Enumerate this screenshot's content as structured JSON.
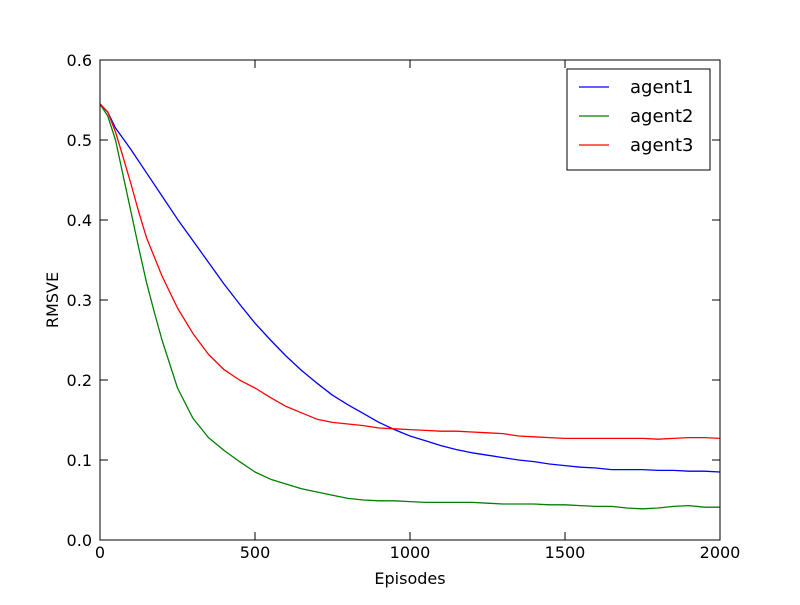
{
  "chart_data": {
    "type": "line",
    "title": "",
    "xlabel": "Episodes",
    "ylabel": "RMSVE",
    "xlim": [
      0,
      2000
    ],
    "ylim": [
      0.0,
      0.6
    ],
    "xticks": [
      0,
      500,
      1000,
      1500,
      2000
    ],
    "xtick_labels": [
      "0",
      "500",
      "1000",
      "1500",
      "2000"
    ],
    "yticks": [
      0.0,
      0.1,
      0.2,
      0.3,
      0.4,
      0.5,
      0.6
    ],
    "ytick_labels": [
      "0.0",
      "0.1",
      "0.2",
      "0.3",
      "0.4",
      "0.5",
      "0.6"
    ],
    "grid": false,
    "legend_position": "top-right",
    "series": [
      {
        "name": "agent1",
        "color": "#0000ff",
        "x": [
          0,
          25,
          50,
          100,
          150,
          200,
          250,
          300,
          350,
          400,
          450,
          500,
          550,
          600,
          650,
          700,
          750,
          800,
          850,
          900,
          950,
          1000,
          1050,
          1100,
          1150,
          1200,
          1250,
          1300,
          1350,
          1400,
          1450,
          1500,
          1550,
          1600,
          1650,
          1700,
          1750,
          1800,
          1850,
          1900,
          1950,
          2000
        ],
        "y": [
          0.545,
          0.535,
          0.515,
          0.488,
          0.459,
          0.43,
          0.401,
          0.374,
          0.347,
          0.32,
          0.295,
          0.271,
          0.25,
          0.23,
          0.212,
          0.196,
          0.181,
          0.169,
          0.158,
          0.147,
          0.138,
          0.13,
          0.124,
          0.118,
          0.113,
          0.109,
          0.106,
          0.103,
          0.1,
          0.098,
          0.095,
          0.093,
          0.091,
          0.09,
          0.088,
          0.088,
          0.088,
          0.087,
          0.087,
          0.086,
          0.086,
          0.085
        ]
      },
      {
        "name": "agent2",
        "color": "#008000",
        "x": [
          0,
          25,
          50,
          75,
          100,
          125,
          150,
          175,
          200,
          250,
          300,
          350,
          400,
          450,
          500,
          550,
          600,
          650,
          700,
          750,
          800,
          850,
          900,
          950,
          1000,
          1050,
          1100,
          1150,
          1200,
          1250,
          1300,
          1350,
          1400,
          1450,
          1500,
          1550,
          1600,
          1650,
          1700,
          1750,
          1800,
          1850,
          1900,
          1950,
          2000
        ],
        "y": [
          0.545,
          0.53,
          0.5,
          0.455,
          0.41,
          0.365,
          0.322,
          0.285,
          0.25,
          0.19,
          0.152,
          0.128,
          0.112,
          0.098,
          0.085,
          0.076,
          0.07,
          0.064,
          0.06,
          0.056,
          0.052,
          0.05,
          0.049,
          0.049,
          0.048,
          0.047,
          0.047,
          0.047,
          0.047,
          0.046,
          0.045,
          0.045,
          0.045,
          0.044,
          0.044,
          0.043,
          0.042,
          0.042,
          0.04,
          0.039,
          0.04,
          0.042,
          0.043,
          0.041,
          0.041
        ]
      },
      {
        "name": "agent3",
        "color": "#ff0000",
        "x": [
          0,
          25,
          50,
          75,
          100,
          125,
          150,
          200,
          250,
          300,
          350,
          400,
          450,
          500,
          550,
          600,
          650,
          700,
          750,
          800,
          850,
          900,
          950,
          1000,
          1050,
          1100,
          1150,
          1200,
          1250,
          1300,
          1350,
          1400,
          1450,
          1500,
          1550,
          1600,
          1650,
          1700,
          1750,
          1800,
          1850,
          1900,
          1950,
          2000
        ],
        "y": [
          0.545,
          0.535,
          0.51,
          0.478,
          0.445,
          0.41,
          0.378,
          0.33,
          0.29,
          0.258,
          0.232,
          0.213,
          0.2,
          0.19,
          0.178,
          0.167,
          0.159,
          0.151,
          0.147,
          0.145,
          0.143,
          0.14,
          0.139,
          0.138,
          0.137,
          0.136,
          0.136,
          0.135,
          0.134,
          0.133,
          0.13,
          0.129,
          0.128,
          0.127,
          0.127,
          0.127,
          0.127,
          0.127,
          0.127,
          0.126,
          0.127,
          0.128,
          0.128,
          0.127
        ]
      }
    ]
  }
}
